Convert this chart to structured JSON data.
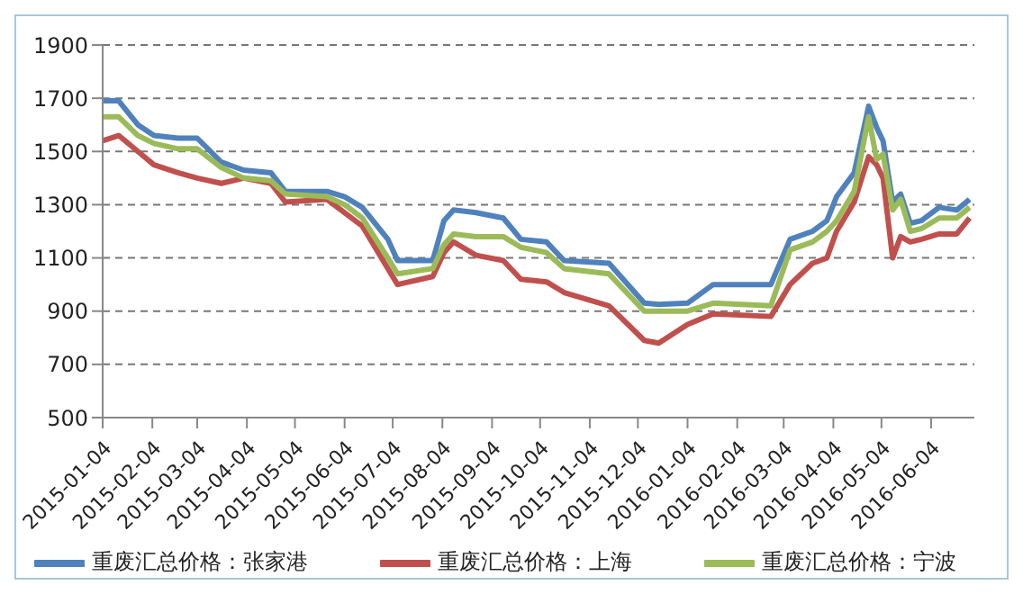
{
  "chart_data": {
    "type": "line",
    "x": [
      "2015-01-04",
      "2015-01-14",
      "2015-01-26",
      "2015-02-05",
      "2015-02-20",
      "2015-03-04",
      "2015-03-19",
      "2015-04-02",
      "2015-04-19",
      "2015-04-28",
      "2015-05-24",
      "2015-06-04",
      "2015-06-15",
      "2015-07-01",
      "2015-07-07",
      "2015-07-29",
      "2015-08-05",
      "2015-08-11",
      "2015-08-25",
      "2015-09-11",
      "2015-09-22",
      "2015-10-08",
      "2015-10-19",
      "2015-11-16",
      "2015-12-08",
      "2015-12-17",
      "2016-01-04",
      "2016-01-20",
      "2016-02-25",
      "2016-03-08",
      "2016-03-22",
      "2016-03-31",
      "2016-04-06",
      "2016-04-17",
      "2016-04-26",
      "2016-05-01",
      "2016-05-05",
      "2016-05-11",
      "2016-05-16",
      "2016-05-22",
      "2016-05-29",
      "2016-06-09",
      "2016-06-20",
      "2016-06-28"
    ],
    "series": [
      {
        "name": "重废汇总价格：张家港",
        "color": "#4f81bd",
        "values": [
          1690,
          1690,
          1600,
          1560,
          1550,
          1550,
          1460,
          1430,
          1420,
          1350,
          1350,
          1330,
          1290,
          1170,
          1090,
          1090,
          1240,
          1280,
          1270,
          1250,
          1170,
          1160,
          1090,
          1080,
          930,
          925,
          930,
          1000,
          1000,
          1170,
          1200,
          1240,
          1330,
          1420,
          1670,
          1590,
          1540,
          1310,
          1340,
          1230,
          1240,
          1290,
          1280,
          1320
        ]
      },
      {
        "name": "重废汇总价格：上海",
        "color": "#c0504d",
        "values": [
          1540,
          1560,
          1500,
          1450,
          1420,
          1400,
          1380,
          1400,
          1380,
          1310,
          1320,
          1270,
          1220,
          1060,
          1000,
          1030,
          1120,
          1160,
          1110,
          1090,
          1020,
          1010,
          970,
          920,
          790,
          780,
          850,
          890,
          880,
          1000,
          1080,
          1100,
          1200,
          1310,
          1480,
          1450,
          1400,
          1100,
          1180,
          1160,
          1170,
          1190,
          1190,
          1250
        ]
      },
      {
        "name": "重废汇总价格：宁波",
        "color": "#9bbb59",
        "values": [
          1630,
          1630,
          1560,
          1530,
          1510,
          1510,
          1440,
          1400,
          1390,
          1340,
          1330,
          1300,
          1250,
          1100,
          1040,
          1060,
          1150,
          1190,
          1180,
          1180,
          1140,
          1120,
          1060,
          1040,
          900,
          900,
          900,
          930,
          920,
          1130,
          1160,
          1200,
          1240,
          1350,
          1630,
          1470,
          1490,
          1280,
          1320,
          1200,
          1210,
          1250,
          1250,
          1290
        ]
      }
    ],
    "xlim": [
      "2015-01-04",
      "2016-07-01"
    ],
    "xticks": [
      "2015-01-04",
      "2015-02-04",
      "2015-03-04",
      "2015-04-04",
      "2015-05-04",
      "2015-06-04",
      "2015-07-04",
      "2015-08-04",
      "2015-09-04",
      "2015-10-04",
      "2015-11-04",
      "2015-12-04",
      "2016-01-04",
      "2016-02-04",
      "2016-03-04",
      "2016-04-04",
      "2016-05-04",
      "2016-06-04"
    ],
    "ylim": [
      500,
      1900
    ],
    "yticks": [
      500,
      700,
      900,
      1100,
      1300,
      1500,
      1700,
      1900
    ],
    "grid": "y",
    "legend": "bottom",
    "marker": "none",
    "line_style": "solid"
  }
}
